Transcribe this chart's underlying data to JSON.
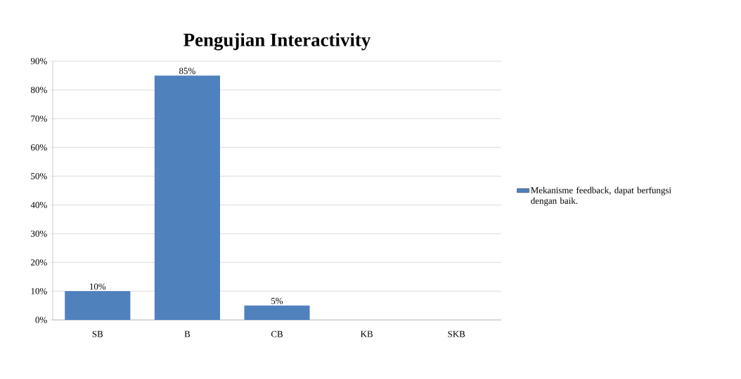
{
  "chart_data": {
    "type": "bar",
    "title": "Pengujian Interactivity",
    "categories": [
      "SB",
      "B",
      "CB",
      "KB",
      "SKB"
    ],
    "series": [
      {
        "name": "Mekanisme feedback,  dapat berfungsi dengan baik.",
        "color": "#4f81bd",
        "values": [
          10,
          85,
          5,
          0,
          0
        ],
        "value_labels": [
          "10%",
          "85%",
          "5%",
          null,
          null
        ]
      }
    ],
    "ylim": [
      0,
      90
    ],
    "yticks": [
      {
        "value": 0,
        "label": "0%"
      },
      {
        "value": 10,
        "label": "10%"
      },
      {
        "value": 20,
        "label": "20%"
      },
      {
        "value": 30,
        "label": "30%"
      },
      {
        "value": 40,
        "label": "40%"
      },
      {
        "value": 50,
        "label": "50%"
      },
      {
        "value": 60,
        "label": "60%"
      },
      {
        "value": 70,
        "label": "70%"
      },
      {
        "value": 80,
        "label": "80%"
      },
      {
        "value": 90,
        "label": "90%"
      }
    ],
    "grid": "y",
    "legend": "right"
  }
}
